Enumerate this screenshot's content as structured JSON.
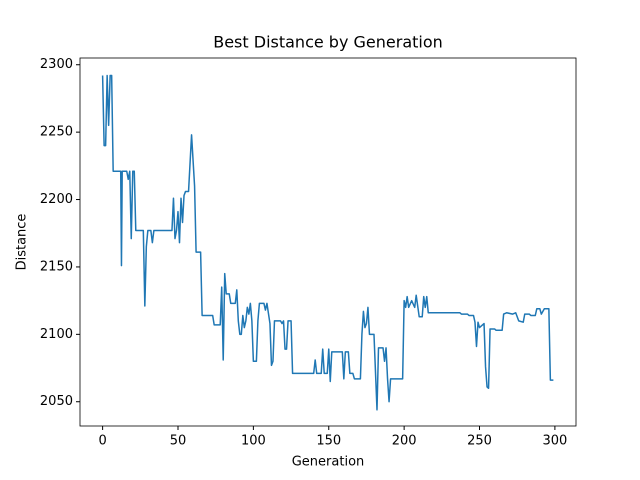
{
  "chart_data": {
    "type": "line",
    "title": "Best Distance by Generation",
    "x_label": "Generation",
    "y_label": "Distance",
    "color": "#1f77b4",
    "x": [
      0,
      1,
      2,
      3,
      4,
      5,
      6,
      7,
      12,
      12.5,
      13,
      16,
      17,
      18,
      19,
      20,
      21,
      22,
      27,
      28,
      29,
      30,
      32,
      33,
      34,
      46,
      47,
      48,
      49,
      50,
      51,
      52,
      53,
      54,
      55,
      57,
      59,
      61,
      62,
      65,
      66,
      73,
      74,
      78,
      79,
      80,
      81,
      82,
      84,
      85,
      88,
      89,
      90,
      91,
      92,
      93,
      94,
      95,
      96,
      97,
      98,
      99,
      100,
      102,
      103,
      104,
      107,
      108,
      109,
      111,
      112,
      113,
      114,
      118,
      119,
      120,
      121,
      122,
      123,
      125,
      126,
      140,
      141,
      142,
      145,
      146,
      147,
      149,
      150,
      151,
      152,
      159,
      160,
      161,
      163,
      164,
      166,
      167,
      171,
      172,
      173,
      174,
      175,
      176,
      177,
      180,
      182,
      183,
      186,
      187,
      188,
      189,
      190,
      191,
      199,
      200,
      201,
      202,
      203,
      205,
      207,
      208,
      210,
      212,
      213,
      214,
      215,
      216,
      237,
      238,
      242,
      243,
      246,
      247,
      248,
      249,
      250,
      253,
      254,
      255,
      256,
      257,
      260,
      261,
      265,
      266,
      268,
      272,
      274,
      276,
      279,
      280,
      283,
      284,
      287,
      288,
      290,
      291,
      293,
      296,
      297,
      299
    ],
    "values": [
      2292,
      2240,
      2240,
      2292,
      2255,
      2292,
      2292,
      2221,
      2221,
      2151,
      2221,
      2221,
      2215,
      2221,
      2171,
      2221,
      2221,
      2177,
      2177,
      2121,
      2165,
      2177,
      2177,
      2168,
      2177,
      2177,
      2201,
      2171,
      2177,
      2191,
      2168,
      2201,
      2183,
      2203,
      2206,
      2206,
      2248,
      2210,
      2161,
      2161,
      2114,
      2114,
      2107,
      2107,
      2135,
      2081,
      2145,
      2130,
      2130,
      2123,
      2123,
      2133,
      2110,
      2100,
      2100,
      2114,
      2105,
      2110,
      2120,
      2115,
      2123,
      2110,
      2080,
      2080,
      2110,
      2123,
      2123,
      2118,
      2123,
      2108,
      2077,
      2080,
      2110,
      2110,
      2108,
      2110,
      2089,
      2089,
      2110,
      2110,
      2071,
      2071,
      2081,
      2071,
      2071,
      2089,
      2071,
      2071,
      2089,
      2065,
      2087,
      2087,
      2067,
      2087,
      2087,
      2071,
      2071,
      2067,
      2067,
      2100,
      2117,
      2105,
      2108,
      2120,
      2100,
      2100,
      2044,
      2090,
      2090,
      2080,
      2090,
      2067,
      2050,
      2067,
      2067,
      2125,
      2120,
      2128,
      2120,
      2125,
      2120,
      2129,
      2113,
      2113,
      2128,
      2120,
      2128,
      2116,
      2116,
      2115,
      2115,
      2114,
      2114,
      2109,
      2091,
      2109,
      2105,
      2108,
      2076,
      2061,
      2060,
      2104,
      2104,
      2103,
      2103,
      2115,
      2116,
      2115,
      2116,
      2110,
      2109,
      2115,
      2115,
      2114,
      2114,
      2119,
      2119,
      2115,
      2119,
      2119,
      2066,
      2066
    ],
    "xlim": [
      -15,
      314
    ],
    "ylim": [
      2032,
      2305
    ],
    "xticks": [
      0,
      50,
      100,
      150,
      200,
      250,
      300
    ],
    "yticks": [
      2050,
      2100,
      2150,
      2200,
      2250,
      2300
    ]
  }
}
